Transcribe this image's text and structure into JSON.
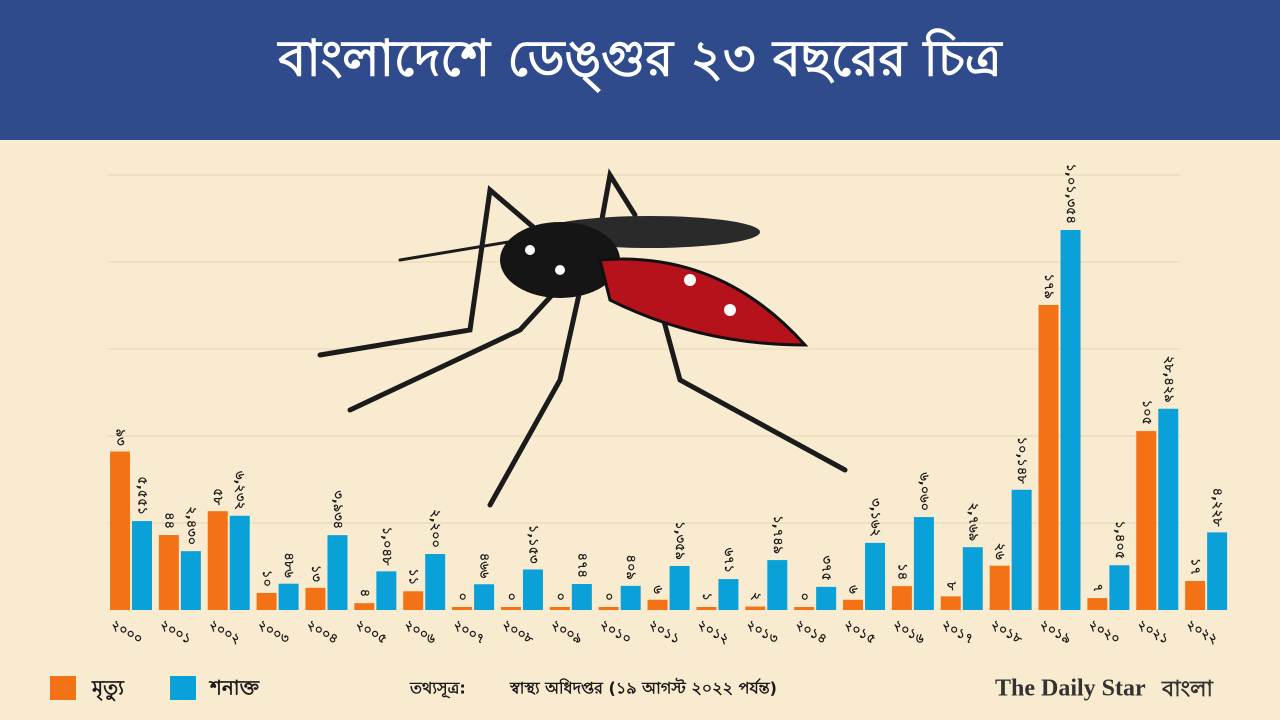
{
  "chart_data": {
    "type": "bar",
    "title": "বাংলাদেশে ডেঙ্গুর ২৩ বছরের চিত্র",
    "categories": [
      "২০০০",
      "২০০১",
      "২০০২",
      "২০০৩",
      "২০০৪",
      "২০০৫",
      "২০০৬",
      "২০০৭",
      "২০০৮",
      "২০০৯",
      "২০১০",
      "২০১১",
      "২০১২",
      "২০১৩",
      "২০১৪",
      "২০১৫",
      "২০১৬",
      "২০১৭",
      "২০১৮",
      "২০১৯",
      "২০২০",
      "২০২১",
      "২০২২"
    ],
    "series": [
      {
        "name": "মৃত্যু",
        "color": "#f47216",
        "values": [
          93,
          44,
          58,
          10,
          13,
          4,
          11,
          0,
          0,
          0,
          0,
          6,
          1,
          2,
          0,
          6,
          14,
          8,
          26,
          179,
          7,
          105,
          17
        ],
        "value_labels": [
          "৯৩",
          "৪৪",
          "৫৮",
          "১০",
          "১৩",
          "৪",
          "১১",
          "০",
          "০",
          "০",
          "০",
          "৬",
          "১",
          "২",
          "০",
          "৬",
          "১৪",
          "৮",
          "২৬",
          "১৭৯",
          "৭",
          "১০৫",
          "১৭"
        ]
      },
      {
        "name": "শনাক্ত",
        "color": "#0aa0d8",
        "values": [
          5551,
          2430,
          6232,
          486,
          3934,
          1048,
          2200,
          466,
          1153,
          474,
          409,
          1359,
          671,
          1749,
          375,
          3162,
          6060,
          2769,
          10148,
          101354,
          1405,
          28429,
          4228
        ],
        "value_labels": [
          "৫,৫৫১",
          "২,৪৩০",
          "৬,২৩২",
          "৪৮৬",
          "৩,৯৩৪",
          "১,০৪৮",
          "২,২০০",
          "৪৬৬",
          "১,১৫৩",
          "৪৭৪",
          "৪০৯",
          "১,৩৫৯",
          "৬৭১",
          "১,৭৪৯",
          "৩৭৫",
          "৩,১৬২",
          "৬,০৬০",
          "২,৭৬৯",
          "১০,১৪৮",
          "১,০১,৩৫৪",
          "১,৪০৫",
          "২৮,৪২৯",
          "৪,২২৮"
        ]
      }
    ],
    "source_label": "তথ্যসূত্র:",
    "source": "স্বাস্থ্য অধিদপ্তর (১৯ আগস্ট ২০২২ পর্যন্ত)",
    "logo": "The Daily Star",
    "logo_suffix": "বাংলা"
  }
}
